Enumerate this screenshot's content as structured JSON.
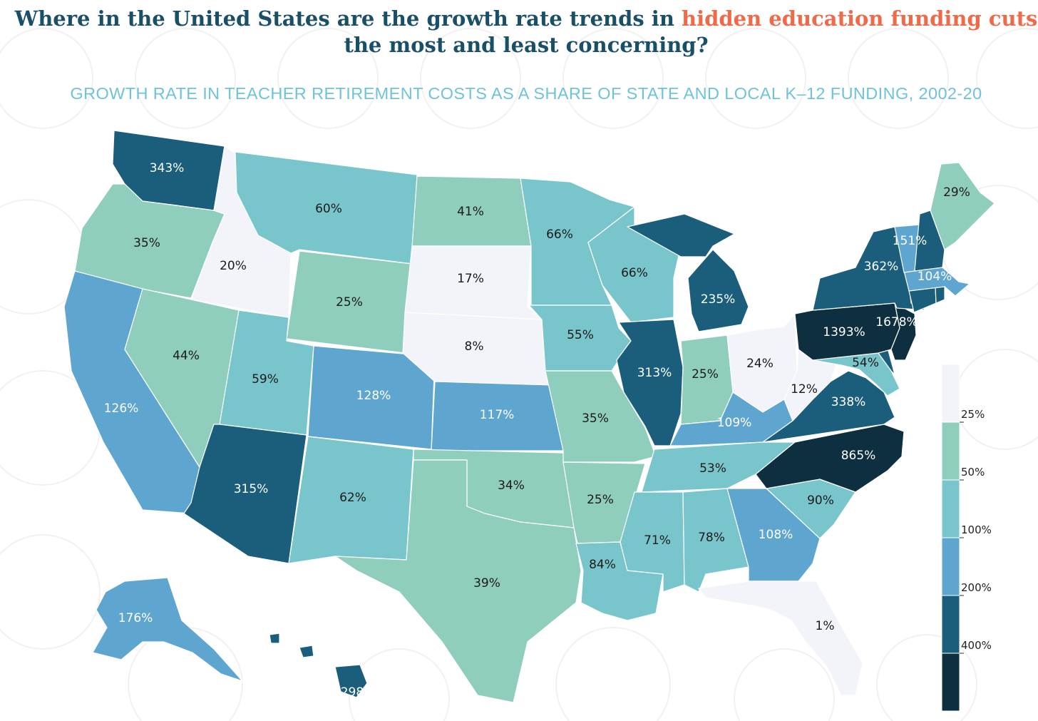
{
  "title": {
    "part1": "Where in the United States are the growth rate  trends in ",
    "highlight": "hidden education funding cuts",
    "line2": "the most and least concerning?"
  },
  "subtitle": "GROWTH RATE IN TEACHER RETIREMENT COSTS AS A SHARE OF STATE AND LOCAL K–12 FUNDING, 2002-20",
  "colors": {
    "bin_lt25": "#f3f3fa",
    "bin_25_50": "#8fcdbd",
    "bin_50_100": "#78c6cb",
    "bin_100_200": "#5ea6d0",
    "bin_200_400": "#1b5e7c",
    "bin_400plus": "#0d2f3f",
    "title_accent": "#f06a4a",
    "title_main": "#1a4f68",
    "subtitle": "#6fc3d8"
  },
  "legend": {
    "thresholds": [
      "25%",
      "50%",
      "100%",
      "200%",
      "400%"
    ]
  },
  "states": [
    {
      "state": "WA",
      "value": 343,
      "label": "343%"
    },
    {
      "state": "OR",
      "value": 35,
      "label": "35%"
    },
    {
      "state": "CA",
      "value": 126,
      "label": "126%"
    },
    {
      "state": "ID",
      "value": 20,
      "label": "20%"
    },
    {
      "state": "NV",
      "value": 44,
      "label": "44%"
    },
    {
      "state": "MT",
      "value": 60,
      "label": "60%"
    },
    {
      "state": "WY",
      "value": 25,
      "label": "25%"
    },
    {
      "state": "UT",
      "value": 59,
      "label": "59%"
    },
    {
      "state": "AZ",
      "value": 315,
      "label": "315%"
    },
    {
      "state": "CO",
      "value": 128,
      "label": "128%"
    },
    {
      "state": "NM",
      "value": 62,
      "label": "62%"
    },
    {
      "state": "ND",
      "value": 41,
      "label": "41%"
    },
    {
      "state": "SD",
      "value": 17,
      "label": "17%"
    },
    {
      "state": "NE",
      "value": 8,
      "label": "8%"
    },
    {
      "state": "KS",
      "value": 117,
      "label": "117%"
    },
    {
      "state": "OK",
      "value": 34,
      "label": "34%"
    },
    {
      "state": "TX",
      "value": 39,
      "label": "39%"
    },
    {
      "state": "MN",
      "value": 66,
      "label": "66%"
    },
    {
      "state": "IA",
      "value": 55,
      "label": "55%"
    },
    {
      "state": "MO",
      "value": 35,
      "label": "35%"
    },
    {
      "state": "AR",
      "value": 25,
      "label": "25%"
    },
    {
      "state": "LA",
      "value": 84,
      "label": "84%"
    },
    {
      "state": "WI",
      "value": 66,
      "label": "66%"
    },
    {
      "state": "IL",
      "value": 313,
      "label": "313%"
    },
    {
      "state": "MI",
      "value": 235,
      "label": "235%"
    },
    {
      "state": "IN",
      "value": 25,
      "label": "25%"
    },
    {
      "state": "OH",
      "value": 24,
      "label": "24%"
    },
    {
      "state": "KY",
      "value": 109,
      "label": "109%"
    },
    {
      "state": "TN",
      "value": 53,
      "label": "53%"
    },
    {
      "state": "MS",
      "value": 71,
      "label": "71%"
    },
    {
      "state": "AL",
      "value": 78,
      "label": "78%"
    },
    {
      "state": "GA",
      "value": 108,
      "label": "108%"
    },
    {
      "state": "FL",
      "value": 1,
      "label": "1%"
    },
    {
      "state": "SC",
      "value": 90,
      "label": "90%"
    },
    {
      "state": "NC",
      "value": 865,
      "label": "865%"
    },
    {
      "state": "VA",
      "value": 338,
      "label": "338%"
    },
    {
      "state": "WV",
      "value": 12,
      "label": "12%"
    },
    {
      "state": "MD",
      "value": 54,
      "label": "54%"
    },
    {
      "state": "DE",
      "value": null,
      "label": ""
    },
    {
      "state": "PA",
      "value": 1393,
      "label": "1393%"
    },
    {
      "state": "NJ",
      "value": 1678,
      "label": "1678%"
    },
    {
      "state": "NY",
      "value": 362,
      "label": "362%"
    },
    {
      "state": "CT",
      "value": null,
      "label": ""
    },
    {
      "state": "RI",
      "value": null,
      "label": ""
    },
    {
      "state": "MA",
      "value": 104,
      "label": "104%"
    },
    {
      "state": "VT",
      "value": 151,
      "label": "151%"
    },
    {
      "state": "NH",
      "value": null,
      "label": ""
    },
    {
      "state": "ME",
      "value": 29,
      "label": "29%"
    },
    {
      "state": "AK",
      "value": 176,
      "label": "176%"
    },
    {
      "state": "HI",
      "value": 298,
      "label": "298%"
    }
  ]
}
